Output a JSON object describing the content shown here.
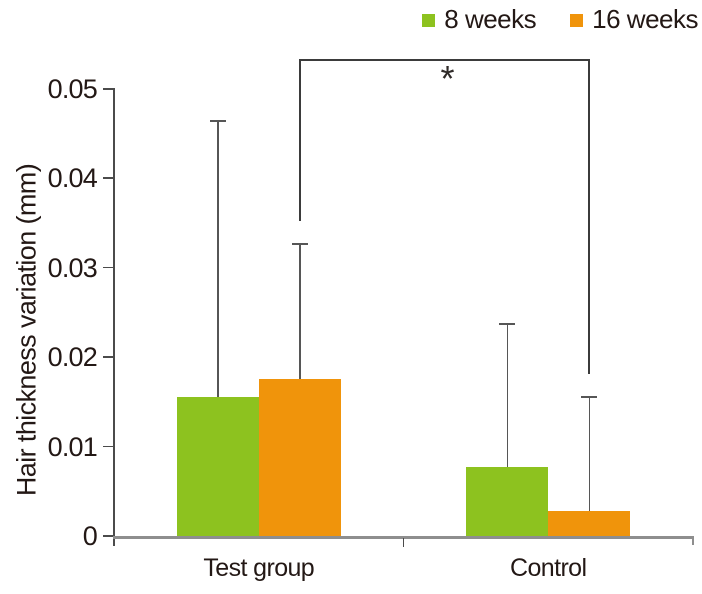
{
  "chart_data": {
    "type": "bar",
    "title": "",
    "xlabel": "",
    "ylabel": "Hair thickness variation (mm)",
    "categories": [
      "Test group",
      "Control"
    ],
    "series": [
      {
        "name": "8 weeks",
        "color": "#8dc21f",
        "values": [
          0.0156,
          0.0077
        ],
        "error_upper": [
          0.0464,
          0.0237
        ]
      },
      {
        "name": "16 weeks",
        "color": "#f0940b",
        "values": [
          0.0176,
          0.0028
        ],
        "error_upper": [
          0.0327,
          0.0156
        ]
      }
    ],
    "ylim": [
      0,
      0.05
    ],
    "yticks": [
      0,
      0.01,
      0.02,
      0.03,
      0.04,
      0.05
    ],
    "ytick_labels": [
      "0",
      "0.01",
      "0.02",
      "0.03",
      "0.04",
      "0.05"
    ],
    "grid": false,
    "legend_position": "top-right",
    "error_bars": "upper-only",
    "significance": {
      "symbol": "*",
      "series_index": 1,
      "category_indexes": [
        0,
        1
      ],
      "between": [
        "Test group / 16 weeks",
        "Control / 16 weeks"
      ]
    },
    "colors": {
      "axis": "#4b4b4b",
      "baseline": "#8e8e8e",
      "error_bar": "#565656",
      "bracket": "#3b3b3b",
      "text": "#231815",
      "background": "#ffffff"
    }
  }
}
